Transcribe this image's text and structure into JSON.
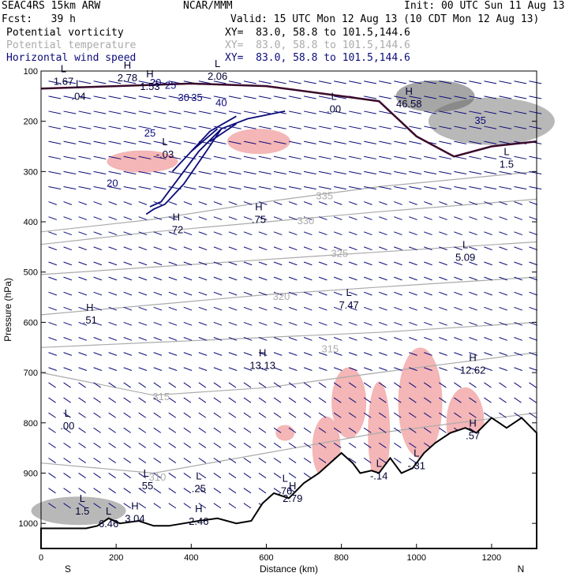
{
  "header": {
    "model": "SEAC4RS 15km ARW",
    "center": "NCAR/MMM",
    "init": "Init: 00 UTC Sun 11 Aug 13",
    "fcst": "Fcst:   39 h",
    "valid": "Valid: 15 UTC Mon 12 Aug 13 (10 CDT Mon 12 Aug 13)",
    "fields": [
      {
        "name": "Potential vorticity",
        "xy": "XY=  83.0, 58.8 to 101.5,144.6",
        "color": "#000000"
      },
      {
        "name": "Potential temperature",
        "xy": "XY=  83.0, 58.8 to 101.5,144.6",
        "color": "#aaaaaa"
      },
      {
        "name": "Horizontal wind speed",
        "xy": "XY=  83.0, 58.8 to 101.5,144.6",
        "color": "#0b0b7a"
      }
    ]
  },
  "chart_data": {
    "type": "cross-section",
    "xlabel": "Distance (km)",
    "ylabel": "Pressure (hPa)",
    "xlim": [
      0,
      1320
    ],
    "ylim": [
      1050,
      100
    ],
    "x_ticks": [
      "0",
      "200",
      "400",
      "600",
      "800",
      "1000",
      "1200"
    ],
    "y_ticks": [
      "100",
      "200",
      "300",
      "400",
      "500",
      "600",
      "700",
      "800",
      "900",
      "1000"
    ],
    "endpoints": {
      "left": "S",
      "right": "N"
    },
    "colors": {
      "wind": "#0b0b7a",
      "theta": "#aaaaaa",
      "pv_line": "#3a0a2a",
      "pv_fill": "#f4b6b6",
      "terrain": "#000000"
    },
    "wind_speed_contours": [
      {
        "label": "20",
        "points": [
          [
            280,
            385
          ],
          [
            300,
            375
          ],
          [
            330,
            365
          ],
          [
            380,
            325
          ],
          [
            440,
            260
          ],
          [
            480,
            215
          ],
          [
            550,
            195
          ],
          [
            650,
            180
          ]
        ]
      },
      {
        "label": "25",
        "points": [
          [
            290,
            370
          ],
          [
            320,
            360
          ],
          [
            370,
            310
          ],
          [
            420,
            260
          ],
          [
            480,
            215
          ]
        ]
      },
      {
        "label": "30",
        "points": [
          [
            350,
            300
          ],
          [
            400,
            260
          ],
          [
            470,
            215
          ]
        ]
      },
      {
        "label": "35",
        "points": [
          [
            400,
            260
          ],
          [
            450,
            220
          ],
          [
            520,
            190
          ]
        ]
      },
      {
        "label": "40",
        "points": [
          [
            450,
            240
          ],
          [
            520,
            205
          ]
        ]
      }
    ],
    "wind_speed_labels": [
      {
        "text": "20",
        "x": 305,
        "y": 130
      },
      {
        "text": "25",
        "x": 345,
        "y": 135
      },
      {
        "text": "30",
        "x": 380,
        "y": 160
      },
      {
        "text": "35",
        "x": 415,
        "y": 160
      },
      {
        "text": "40",
        "x": 480,
        "y": 170
      },
      {
        "text": "25",
        "x": 290,
        "y": 230
      },
      {
        "text": "20",
        "x": 190,
        "y": 330
      },
      {
        "text": "35",
        "x": 1170,
        "y": 205
      }
    ],
    "theta_labels": [
      {
        "text": "335",
        "x": 755,
        "y": 355
      },
      {
        "text": "330",
        "x": 705,
        "y": 405
      },
      {
        "text": "325",
        "x": 795,
        "y": 470
      },
      {
        "text": "320",
        "x": 640,
        "y": 555
      },
      {
        "text": "315",
        "x": 770,
        "y": 660
      },
      {
        "text": "315",
        "x": 320,
        "y": 755
      },
      {
        "text": "310",
        "x": 310,
        "y": 915
      }
    ],
    "theta_isolines": [
      {
        "label": "335",
        "points": [
          [
            0,
            420
          ],
          [
            300,
            395
          ],
          [
            600,
            360
          ],
          [
            900,
            330
          ],
          [
            1320,
            300
          ]
        ]
      },
      {
        "label": "330",
        "points": [
          [
            0,
            445
          ],
          [
            300,
            420
          ],
          [
            600,
            400
          ],
          [
            900,
            380
          ],
          [
            1320,
            355
          ]
        ]
      },
      {
        "label": "325",
        "points": [
          [
            0,
            505
          ],
          [
            300,
            490
          ],
          [
            600,
            475
          ],
          [
            900,
            460
          ],
          [
            1320,
            440
          ]
        ]
      },
      {
        "label": "320",
        "points": [
          [
            0,
            585
          ],
          [
            300,
            565
          ],
          [
            600,
            545
          ],
          [
            900,
            530
          ],
          [
            1320,
            510
          ]
        ]
      },
      {
        "label": "315",
        "points": [
          [
            0,
            650
          ],
          [
            300,
            640
          ],
          [
            600,
            630
          ],
          [
            900,
            620
          ],
          [
            1320,
            600
          ]
        ]
      },
      {
        "label": "315",
        "points": [
          [
            0,
            700
          ],
          [
            300,
            745
          ],
          [
            600,
            730
          ],
          [
            900,
            700
          ],
          [
            1320,
            660
          ]
        ]
      },
      {
        "label": "310",
        "points": [
          [
            0,
            880
          ],
          [
            300,
            900
          ],
          [
            600,
            860
          ],
          [
            900,
            820
          ],
          [
            1320,
            780
          ]
        ]
      }
    ],
    "extrema": [
      {
        "kind": "H",
        "value": "46.58",
        "x": 980,
        "y": 160
      },
      {
        "kind": "L",
        "value": ".00",
        "x": 780,
        "y": 170
      },
      {
        "kind": "L",
        "value": "-.03",
        "x": 330,
        "y": 260
      },
      {
        "kind": "H",
        "value": ".75",
        "x": 580,
        "y": 390
      },
      {
        "kind": "H",
        "value": ".72",
        "x": 360,
        "y": 410
      },
      {
        "kind": "L",
        "value": "5.09",
        "x": 1130,
        "y": 465
      },
      {
        "kind": "L",
        "value": "7.47",
        "x": 820,
        "y": 560
      },
      {
        "kind": "H",
        "value": ".51",
        "x": 130,
        "y": 590
      },
      {
        "kind": "H",
        "value": "13.13",
        "x": 590,
        "y": 680
      },
      {
        "kind": "H",
        "value": "12.62",
        "x": 1150,
        "y": 690
      },
      {
        "kind": "L",
        "value": ".00",
        "x": 70,
        "y": 800
      },
      {
        "kind": "L",
        "value": "-.31",
        "x": 1000,
        "y": 880
      },
      {
        "kind": "L",
        "value": "-.14",
        "x": 900,
        "y": 900
      },
      {
        "kind": "L",
        "value": ".55",
        "x": 280,
        "y": 920
      },
      {
        "kind": "L",
        "value": ".25",
        "x": 420,
        "y": 925
      },
      {
        "kind": "L",
        "value": ".76",
        "x": 650,
        "y": 930
      },
      {
        "kind": "H",
        "value": "2.79",
        "x": 670,
        "y": 945
      },
      {
        "kind": "H",
        "value": "3.04",
        "x": 250,
        "y": 985
      },
      {
        "kind": "H",
        "value": "2.46",
        "x": 420,
        "y": 990
      },
      {
        "kind": "L",
        "value": "1.5",
        "x": 110,
        "y": 970
      },
      {
        "kind": "L",
        "value": "6.46",
        "x": 180,
        "y": 995
      },
      {
        "kind": "L",
        "value": "1.67",
        "x": 60,
        "y": 115
      },
      {
        "kind": "L",
        "value": ".04",
        "x": 100,
        "y": 145
      },
      {
        "kind": "H",
        "value": "2.78",
        "x": 230,
        "y": 108
      },
      {
        "kind": "H",
        "value": "1.53",
        "x": 290,
        "y": 125
      },
      {
        "kind": "L",
        "value": "2.06",
        "x": 470,
        "y": 105
      },
      {
        "kind": "L",
        "value": "1.5",
        "x": 1240,
        "y": 280
      },
      {
        "kind": "H",
        "value": ".57",
        "x": 1150,
        "y": 820
      }
    ],
    "terrain": [
      [
        0,
        1010
      ],
      [
        120,
        1010
      ],
      [
        150,
        1005
      ],
      [
        180,
        990
      ],
      [
        210,
        1000
      ],
      [
        260,
        995
      ],
      [
        300,
        1005
      ],
      [
        340,
        1005
      ],
      [
        380,
        1000
      ],
      [
        420,
        995
      ],
      [
        470,
        990
      ],
      [
        520,
        1000
      ],
      [
        560,
        995
      ],
      [
        590,
        960
      ],
      [
        620,
        940
      ],
      [
        660,
        950
      ],
      [
        700,
        920
      ],
      [
        740,
        900
      ],
      [
        770,
        880
      ],
      [
        800,
        860
      ],
      [
        830,
        880
      ],
      [
        850,
        900
      ],
      [
        880,
        895
      ],
      [
        900,
        900
      ],
      [
        930,
        870
      ],
      [
        960,
        900
      ],
      [
        990,
        890
      ],
      [
        1020,
        860
      ],
      [
        1050,
        840
      ],
      [
        1090,
        820
      ],
      [
        1130,
        810
      ],
      [
        1160,
        820
      ],
      [
        1200,
        790
      ],
      [
        1240,
        810
      ],
      [
        1280,
        790
      ],
      [
        1320,
        820
      ]
    ]
  }
}
